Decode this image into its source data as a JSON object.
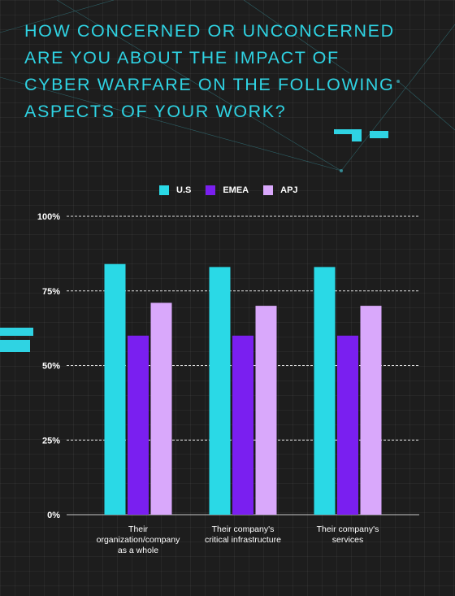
{
  "title_lines": [
    "HOW CONCERNED OR UNCONCERNED",
    "ARE YOU ABOUT THE IMPACT OF",
    "CYBER WARFARE ON THE FOLLOWING",
    "ASPECTS OF YOUR WORK?"
  ],
  "colors": {
    "background": "#1d1d1d",
    "title": "#2fd3e3",
    "us": "#2ad9e6",
    "emea": "#7a1ff0",
    "apj": "#d9a8fb",
    "text": "#ffffff"
  },
  "chart_data": {
    "type": "bar",
    "categories": [
      [
        "Their",
        "organization/company",
        "as a whole"
      ],
      [
        "Their company's",
        "critical infrastructure"
      ],
      [
        "Their company's",
        "services"
      ]
    ],
    "series": [
      {
        "name": "U.S",
        "values": [
          84,
          83,
          83
        ]
      },
      {
        "name": "EMEA",
        "values": [
          60,
          60,
          60
        ]
      },
      {
        "name": "APJ",
        "values": [
          71,
          70,
          70
        ]
      }
    ],
    "ylim": [
      0,
      100
    ],
    "yticks": [
      0,
      25,
      50,
      75,
      100
    ],
    "ytick_labels": [
      "0%",
      "25%",
      "50%",
      "75%",
      "100%"
    ],
    "grid": true,
    "legend_position": "top-center"
  }
}
